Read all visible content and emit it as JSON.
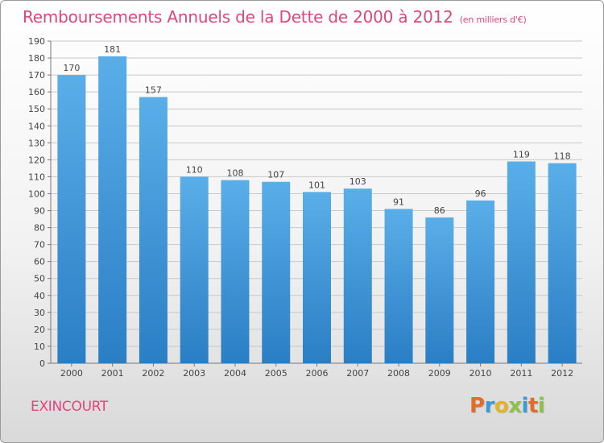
{
  "title": "Remboursements Annuels de la Dette de 2000 à 2012",
  "unit_label": "(en milliers d'€)",
  "commune": "EXINCOURT",
  "logo": {
    "text": "Proxiti",
    "letters": [
      {
        "ch": "P",
        "color": "#e36c2a"
      },
      {
        "ch": "r",
        "color": "#3a9ad9"
      },
      {
        "ch": "o",
        "color": "#e3b32a"
      },
      {
        "ch": "x",
        "color": "#8bc34a"
      },
      {
        "ch": "i",
        "color": "#3a9ad9"
      },
      {
        "ch": "t",
        "color": "#e36c2a"
      },
      {
        "ch": "i",
        "color": "#8bc34a"
      }
    ]
  },
  "colors": {
    "title": "#e0457b",
    "bar_top": "#5aaee8",
    "bar_bottom": "#2a7ec4",
    "grid": "#c8c8c8"
  },
  "chart_data": {
    "type": "bar",
    "categories": [
      "2000",
      "2001",
      "2002",
      "2003",
      "2004",
      "2005",
      "2006",
      "2007",
      "2008",
      "2009",
      "2010",
      "2011",
      "2012"
    ],
    "values": [
      170,
      181,
      157,
      110,
      108,
      107,
      101,
      103,
      91,
      86,
      96,
      119,
      118
    ],
    "ylim": [
      0,
      190
    ],
    "ytick_step": 10,
    "grid": true,
    "xlabel": "",
    "ylabel": ""
  }
}
